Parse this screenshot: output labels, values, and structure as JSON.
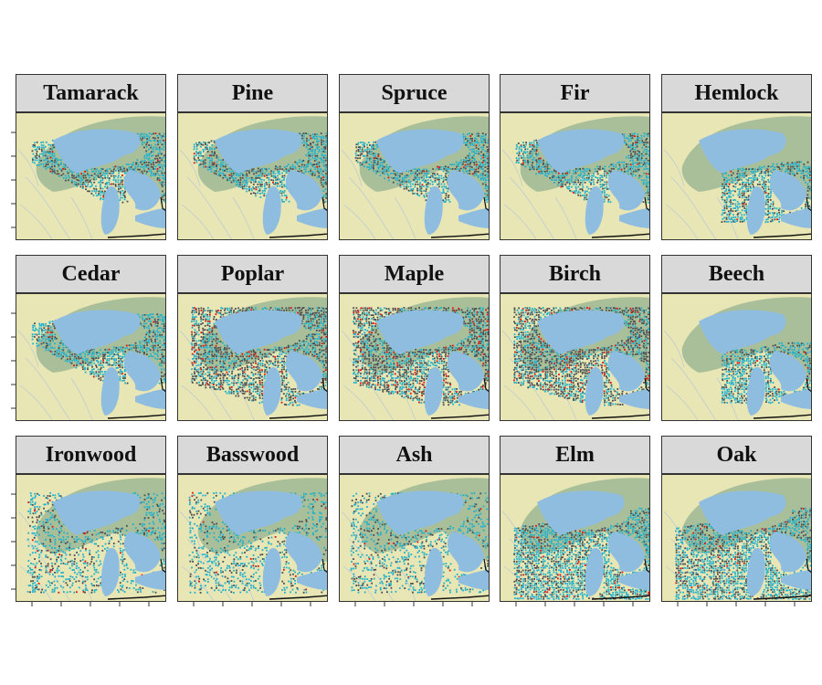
{
  "figure": {
    "panels": [
      {
        "species": "Tamarack",
        "pattern": "north"
      },
      {
        "species": "Pine",
        "pattern": "north"
      },
      {
        "species": "Spruce",
        "pattern": "north"
      },
      {
        "species": "Fir",
        "pattern": "north"
      },
      {
        "species": "Hemlock",
        "pattern": "east"
      },
      {
        "species": "Cedar",
        "pattern": "north"
      },
      {
        "species": "Poplar",
        "pattern": "wide"
      },
      {
        "species": "Maple",
        "pattern": "wide"
      },
      {
        "species": "Birch",
        "pattern": "wide"
      },
      {
        "species": "Beech",
        "pattern": "east"
      },
      {
        "species": "Ironwood",
        "pattern": "sparse"
      },
      {
        "species": "Basswood",
        "pattern": "sparse"
      },
      {
        "species": "Ash",
        "pattern": "sparse"
      },
      {
        "species": "Elm",
        "pattern": "south"
      },
      {
        "species": "Oak",
        "pattern": "south"
      }
    ],
    "colors": {
      "strip_fill": "#d9d9d9",
      "basemap_land": "#e8e6b4",
      "basemap_forest": "#a9bf9a",
      "lake_water": "#8fbde0",
      "presence_cyan": "#1fb0cc",
      "presence_dark": "#4a4d50",
      "presence_red": "#e01010"
    }
  }
}
